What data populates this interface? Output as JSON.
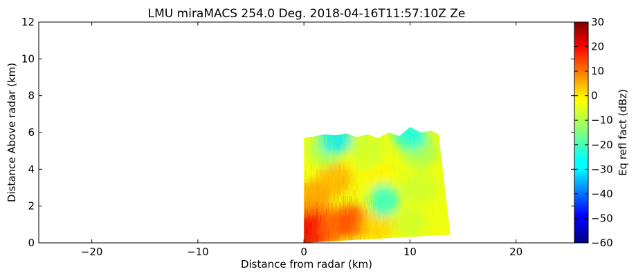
{
  "chart_data": {
    "type": "heatmap",
    "title": "LMU miraMACS 254.0 Deg. 2018-04-16T11:57:10Z  Ze",
    "xlabel": "Distance from radar (km)",
    "ylabel": "Distance Above radar  (km)",
    "xlim": [
      -25,
      25.5
    ],
    "ylim": [
      0,
      12
    ],
    "x_ticks": [
      -20,
      -10,
      0,
      10,
      20
    ],
    "x_tick_labels": [
      "−20",
      "−10",
      "0",
      "10",
      "20"
    ],
    "y_ticks": [
      0,
      2,
      4,
      6,
      8,
      10,
      12
    ],
    "y_tick_labels": [
      "0",
      "2",
      "4",
      "6",
      "8",
      "10",
      "12"
    ],
    "colorbar": {
      "label": "Eq refl fact (dBz)",
      "min": -60,
      "max": 30,
      "ticks": [
        30,
        20,
        10,
        0,
        -10,
        -20,
        -30,
        -40,
        -50,
        -60
      ],
      "tick_labels": [
        "30",
        "20",
        "10",
        "0",
        "−10",
        "−20",
        "−30",
        "−40",
        "−50",
        "−60"
      ],
      "colormap": "jet"
    },
    "rhi_sector": {
      "range_start_km": 0,
      "range_end_km": 13.8,
      "bottom_height_at_start_km": 0,
      "bottom_height_at_end_km": 0.45,
      "top_profile": [
        {
          "x": 0.0,
          "y": 5.7
        },
        {
          "x": 1.0,
          "y": 5.8
        },
        {
          "x": 2.0,
          "y": 5.9
        },
        {
          "x": 3.0,
          "y": 5.85
        },
        {
          "x": 4.0,
          "y": 5.95
        },
        {
          "x": 5.0,
          "y": 5.75
        },
        {
          "x": 6.0,
          "y": 5.9
        },
        {
          "x": 7.0,
          "y": 5.7
        },
        {
          "x": 8.0,
          "y": 6.0
        },
        {
          "x": 9.0,
          "y": 5.8
        },
        {
          "x": 10.0,
          "y": 6.3
        },
        {
          "x": 11.0,
          "y": 6.0
        },
        {
          "x": 12.0,
          "y": 6.1
        },
        {
          "x": 12.7,
          "y": 5.9
        },
        {
          "x": 13.8,
          "y": 0.45
        }
      ],
      "reflectivity_dBz": [
        {
          "x": 0.5,
          "y": 0.5,
          "v": 22
        },
        {
          "x": 1.0,
          "y": 1.2,
          "v": 20
        },
        {
          "x": 2.0,
          "y": 0.8,
          "v": 15
        },
        {
          "x": 3.0,
          "y": 1.0,
          "v": 8
        },
        {
          "x": 4.5,
          "y": 1.2,
          "v": 12
        },
        {
          "x": 7.0,
          "y": 1.0,
          "v": 0
        },
        {
          "x": 10.0,
          "y": 1.0,
          "v": -8
        },
        {
          "x": 1.0,
          "y": 2.5,
          "v": 5
        },
        {
          "x": 3.0,
          "y": 3.5,
          "v": 3
        },
        {
          "x": 7.0,
          "y": 3.5,
          "v": -3
        },
        {
          "x": 7.5,
          "y": 2.3,
          "v": -22
        },
        {
          "x": 11.0,
          "y": 3.0,
          "v": -8
        },
        {
          "x": 2.0,
          "y": 5.0,
          "v": -12
        },
        {
          "x": 6.0,
          "y": 5.0,
          "v": -8
        },
        {
          "x": 11.0,
          "y": 5.0,
          "v": -12
        },
        {
          "x": 3.0,
          "y": 5.7,
          "v": -28
        },
        {
          "x": 10.0,
          "y": 5.9,
          "v": -25
        }
      ]
    }
  }
}
